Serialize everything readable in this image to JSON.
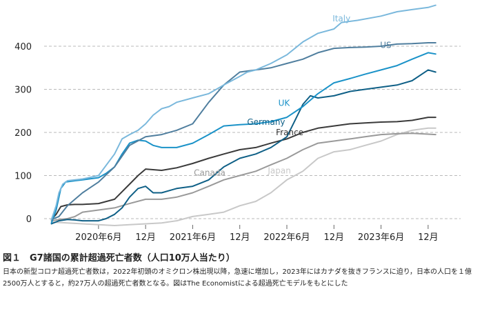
{
  "chart_data": {
    "type": "line",
    "title": "",
    "xlabel": "",
    "ylabel": "",
    "ylim": [
      -25,
      500
    ],
    "y_ticks": [
      0,
      100,
      200,
      300,
      400
    ],
    "y_tick_labels": [
      "0",
      "100",
      "200",
      "300",
      "400"
    ],
    "x_ticks": [
      2020.5,
      2021.0,
      2021.5,
      2022.0,
      2022.5,
      2023.0,
      2023.5,
      2024.0
    ],
    "x_tick_labels": [
      "2020年6月",
      "12月",
      "2021年6月",
      "12月",
      "2022年6月",
      "12月",
      "2023年6月",
      "12月"
    ],
    "grid": "horizontal dashed",
    "legend": "inline labels",
    "series": [
      {
        "name": "Italy",
        "color": "#7ab8dc",
        "label_at": [
          2023.08,
          458
        ],
        "x": [
          2020.0,
          2020.05,
          2020.08,
          2020.12,
          2020.17,
          2020.25,
          2020.33,
          2020.5,
          2020.67,
          2020.75,
          2020.83,
          2020.92,
          2021.0,
          2021.08,
          2021.17,
          2021.25,
          2021.33,
          2021.5,
          2021.67,
          2021.83,
          2022.0,
          2022.08,
          2022.17,
          2022.33,
          2022.5,
          2022.67,
          2022.83,
          2023.0,
          2023.08,
          2023.25,
          2023.5,
          2023.67,
          2023.83,
          2024.0,
          2024.08
        ],
        "values": [
          -2,
          30,
          60,
          80,
          88,
          90,
          92,
          100,
          150,
          185,
          195,
          205,
          220,
          240,
          255,
          260,
          270,
          280,
          290,
          310,
          330,
          340,
          345,
          360,
          380,
          410,
          430,
          440,
          455,
          460,
          470,
          480,
          485,
          490,
          495
        ]
      },
      {
        "name": "US",
        "color": "#4f7e9e",
        "label_at": [
          2023.55,
          396
        ],
        "x": [
          2020.0,
          2020.08,
          2020.17,
          2020.25,
          2020.33,
          2020.5,
          2020.67,
          2020.83,
          2021.0,
          2021.17,
          2021.33,
          2021.5,
          2021.67,
          2021.83,
          2022.0,
          2022.17,
          2022.33,
          2022.5,
          2022.67,
          2022.83,
          2023.0,
          2023.17,
          2023.33,
          2023.5,
          2023.67,
          2023.83,
          2024.0,
          2024.08
        ],
        "values": [
          -2,
          5,
          30,
          45,
          60,
          85,
          120,
          170,
          190,
          195,
          205,
          220,
          270,
          310,
          340,
          345,
          350,
          360,
          370,
          385,
          395,
          397,
          398,
          400,
          405,
          406,
          408,
          408
        ]
      },
      {
        "name": "UK",
        "color": "#1a92c8",
        "label_at": [
          2022.47,
          262
        ],
        "x": [
          2020.0,
          2020.05,
          2020.1,
          2020.15,
          2020.25,
          2020.33,
          2020.5,
          2020.58,
          2020.67,
          2020.75,
          2020.83,
          2020.92,
          2021.0,
          2021.08,
          2021.17,
          2021.33,
          2021.5,
          2021.67,
          2021.83,
          2022.0,
          2022.17,
          2022.33,
          2022.5,
          2022.67,
          2022.83,
          2023.0,
          2023.17,
          2023.33,
          2023.5,
          2023.67,
          2023.83,
          2024.0,
          2024.08
        ],
        "values": [
          -10,
          20,
          70,
          85,
          88,
          90,
          95,
          105,
          120,
          150,
          175,
          182,
          180,
          170,
          165,
          165,
          175,
          195,
          215,
          218,
          220,
          225,
          235,
          260,
          290,
          315,
          325,
          335,
          345,
          355,
          370,
          385,
          382
        ]
      },
      {
        "name": "Germany",
        "color": "#0e5f86",
        "label_at": [
          2022.28,
          218
        ],
        "x": [
          2020.0,
          2020.08,
          2020.17,
          2020.25,
          2020.33,
          2020.5,
          2020.58,
          2020.67,
          2020.75,
          2020.83,
          2020.92,
          2021.0,
          2021.08,
          2021.17,
          2021.33,
          2021.5,
          2021.67,
          2021.83,
          2022.0,
          2022.17,
          2022.33,
          2022.5,
          2022.58,
          2022.67,
          2022.75,
          2022.83,
          2023.0,
          2023.17,
          2023.33,
          2023.5,
          2023.67,
          2023.83,
          2024.0,
          2024.08
        ],
        "values": [
          -12,
          -5,
          -2,
          -3,
          -5,
          -5,
          0,
          10,
          25,
          50,
          70,
          75,
          60,
          60,
          70,
          75,
          90,
          120,
          140,
          150,
          165,
          190,
          225,
          265,
          285,
          280,
          285,
          295,
          300,
          305,
          310,
          320,
          345,
          340
        ]
      },
      {
        "name": "France",
        "color": "#3a3a3a",
        "label_at": [
          2022.53,
          194
        ],
        "x": [
          2020.0,
          2020.05,
          2020.1,
          2020.17,
          2020.25,
          2020.33,
          2020.5,
          2020.67,
          2020.83,
          2020.92,
          2021.0,
          2021.17,
          2021.33,
          2021.5,
          2021.67,
          2021.83,
          2022.0,
          2022.17,
          2022.33,
          2022.5,
          2022.67,
          2022.83,
          2023.0,
          2023.17,
          2023.33,
          2023.5,
          2023.67,
          2023.83,
          2024.0,
          2024.08
        ],
        "values": [
          -2,
          10,
          28,
          32,
          33,
          33,
          35,
          45,
          80,
          100,
          115,
          112,
          118,
          128,
          140,
          150,
          160,
          165,
          175,
          185,
          200,
          210,
          215,
          220,
          222,
          224,
          225,
          228,
          235,
          235
        ]
      },
      {
        "name": "Canada",
        "color": "#999999",
        "label_at": [
          2021.68,
          100
        ],
        "x": [
          2020.0,
          2020.08,
          2020.17,
          2020.25,
          2020.33,
          2020.5,
          2020.67,
          2020.83,
          2021.0,
          2021.17,
          2021.33,
          2021.5,
          2021.67,
          2021.83,
          2022.0,
          2022.17,
          2022.33,
          2022.5,
          2022.67,
          2022.83,
          2023.0,
          2023.17,
          2023.33,
          2023.5,
          2023.67,
          2023.83,
          2024.0,
          2024.08
        ],
        "values": [
          -5,
          -2,
          0,
          5,
          15,
          20,
          25,
          35,
          45,
          45,
          50,
          60,
          75,
          90,
          100,
          110,
          125,
          140,
          160,
          175,
          180,
          185,
          190,
          195,
          197,
          198,
          196,
          195
        ]
      },
      {
        "name": "Japan",
        "color": "#c8c8c8",
        "label_at": [
          2022.42,
          105
        ],
        "x": [
          2020.0,
          2020.17,
          2020.33,
          2020.5,
          2020.67,
          2020.83,
          2021.0,
          2021.17,
          2021.33,
          2021.5,
          2021.67,
          2021.83,
          2022.0,
          2022.17,
          2022.33,
          2022.5,
          2022.67,
          2022.83,
          2023.0,
          2023.17,
          2023.33,
          2023.5,
          2023.67,
          2023.83,
          2024.0,
          2024.08
        ],
        "values": [
          -8,
          -10,
          -12,
          -14,
          -16,
          -14,
          -12,
          -10,
          -5,
          5,
          10,
          15,
          30,
          40,
          60,
          90,
          110,
          140,
          155,
          160,
          170,
          180,
          195,
          205,
          210,
          210
        ]
      }
    ]
  },
  "caption": {
    "title": "図１　G7諸国の累計超過死亡者数（人口10万人当たり）",
    "text": "日本の新型コロナ超過死亡者数は，2022年初頭のオミクロン株出現以降，急速に増加し，2023年にはカナダを抜きフランスに迫り，日本の人口を１億2500万人とすると，約27万人の超過死亡者数となる。図はThe Economistによる超過死亡モデルをもとにした"
  }
}
